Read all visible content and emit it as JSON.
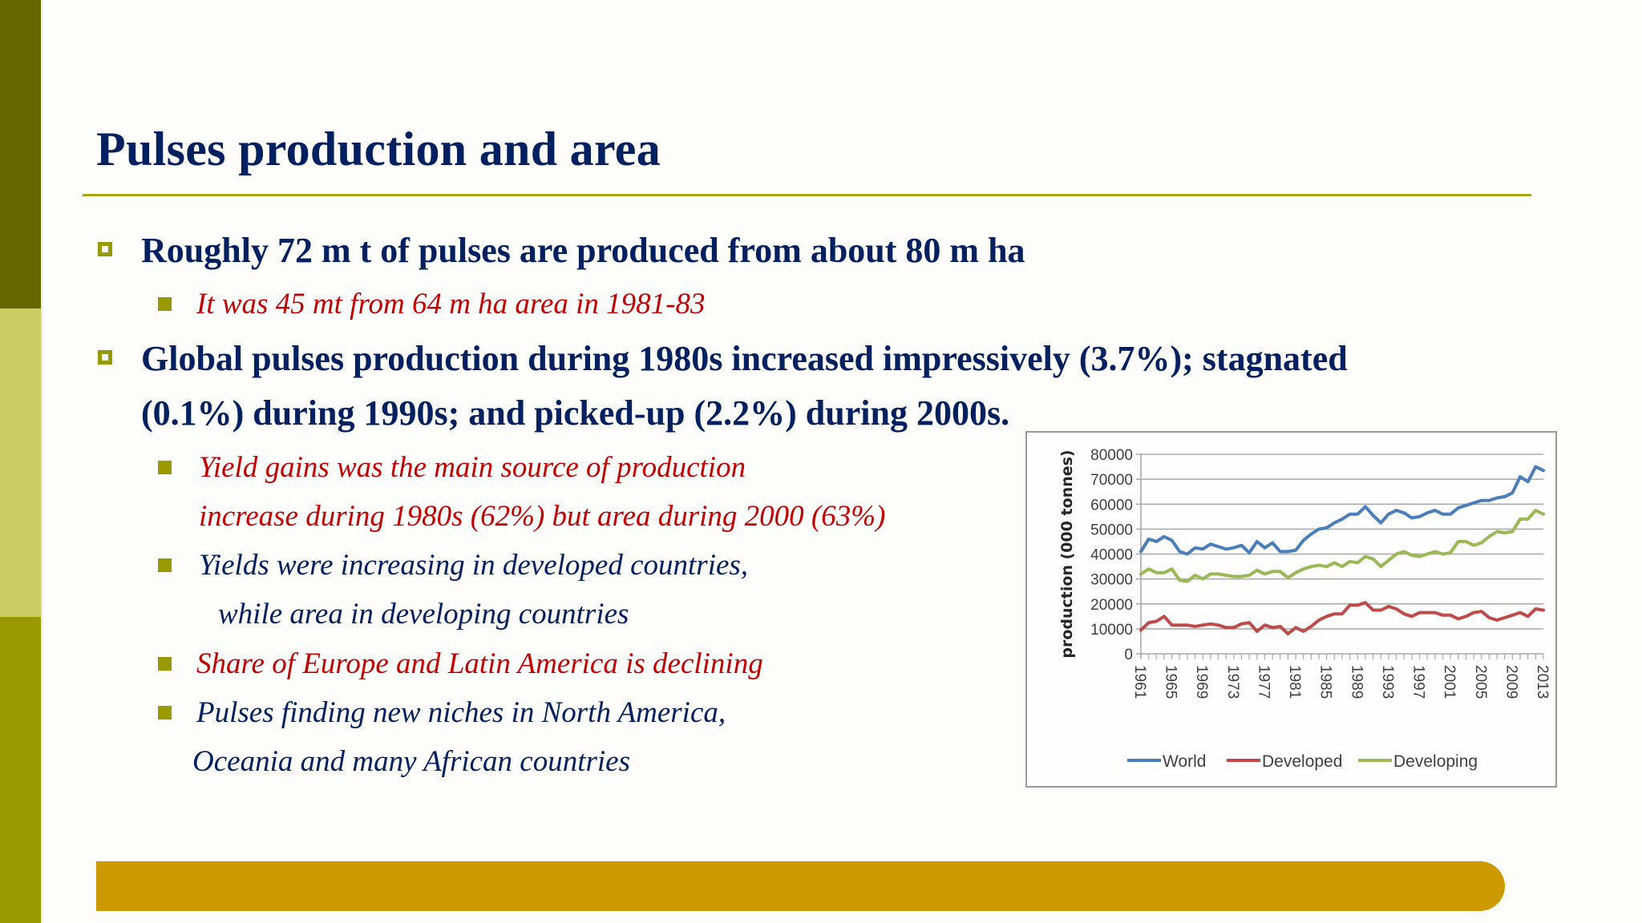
{
  "slide": {
    "title": "Pulses production and area",
    "colors": {
      "title": "#002060",
      "body_navy": "#002060",
      "body_red": "#c00000",
      "bullet": "#999900",
      "rule": "#a6a614",
      "bottom_bar": "#cc9900",
      "side_top": "#666600",
      "side_mid": "#cccc66",
      "side_bottom": "#999900"
    },
    "bullets": [
      {
        "text": "Roughly 72 m t of pulses are produced from about 80 m ha",
        "icon": "hollow-square-bullet",
        "sub": [
          {
            "lines": [
              "It was 45 mt from 64 m ha area in 1981-83"
            ],
            "color": "red",
            "icon": "filled-square-bullet"
          }
        ]
      },
      {
        "lines": [
          "Global pulses production during 1980s increased impressively (3.7%); stagnated",
          "(0.1%) during 1990s; and picked-up (2.2%) during 2000s."
        ],
        "icon": "hollow-square-bullet",
        "sub": [
          {
            "lines": [
              "Yield gains was the main source of production",
              "increase during 1980s  (62%) but area during 2000 (63%)"
            ],
            "color": "red",
            "icon": "filled-square-bullet"
          },
          {
            "lines": [
              "Yields were increasing in developed countries,",
              "while area in developing countries"
            ],
            "color": "navy",
            "icon": "filled-square-bullet"
          },
          {
            "lines": [
              "Share of Europe and Latin America is declining"
            ],
            "color": "red",
            "icon": "filled-square-bullet"
          },
          {
            "lines": [
              "Pulses finding new niches in North America,",
              "Oceania and many African countries"
            ],
            "color": "navy",
            "icon": "filled-square-bullet"
          }
        ]
      }
    ]
  },
  "chart_data": {
    "type": "line",
    "title": "",
    "xlabel": "",
    "ylabel": "production (000 tonnes)",
    "ylim": [
      0,
      80000
    ],
    "yticks": [
      "0",
      "10000",
      "20000",
      "30000",
      "40000",
      "50000",
      "60000",
      "70000",
      "80000"
    ],
    "xtick_labels": [
      "1961",
      "1965",
      "1969",
      "1973",
      "1977",
      "1981",
      "1985",
      "1989",
      "1993",
      "1997",
      "2001",
      "2005",
      "2009",
      "2013"
    ],
    "x": [
      1961,
      1962,
      1963,
      1964,
      1965,
      1966,
      1967,
      1968,
      1969,
      1970,
      1971,
      1972,
      1973,
      1974,
      1975,
      1976,
      1977,
      1978,
      1979,
      1980,
      1981,
      1982,
      1983,
      1984,
      1985,
      1986,
      1987,
      1988,
      1989,
      1990,
      1991,
      1992,
      1993,
      1994,
      1995,
      1996,
      1997,
      1998,
      1999,
      2000,
      2001,
      2002,
      2003,
      2004,
      2005,
      2006,
      2007,
      2008,
      2009,
      2010,
      2011,
      2012,
      2013
    ],
    "grid": true,
    "legend_position": "bottom",
    "series": [
      {
        "name": "World",
        "color": "#4a7ebb",
        "values": [
          41000,
          46000,
          45000,
          47000,
          45500,
          41000,
          40000,
          42500,
          42000,
          44000,
          43000,
          42000,
          42500,
          43500,
          40500,
          45000,
          42500,
          44500,
          41000,
          41000,
          41500,
          45500,
          48000,
          50000,
          50500,
          52500,
          54000,
          56000,
          56000,
          59000,
          55500,
          52500,
          56000,
          57500,
          56500,
          54500,
          55000,
          56500,
          57500,
          56000,
          56000,
          58500,
          59500,
          60500,
          61500,
          61500,
          62500,
          63000,
          64500,
          71000,
          69000,
          75000,
          73500
        ]
      },
      {
        "name": "Developed",
        "color": "#be4b48",
        "values": [
          9500,
          12500,
          13000,
          15000,
          11500,
          11500,
          11500,
          11000,
          11500,
          12000,
          11500,
          10500,
          10500,
          12000,
          12500,
          9000,
          11500,
          10500,
          11000,
          8000,
          10500,
          9000,
          11000,
          13500,
          15000,
          16000,
          16000,
          19500,
          19500,
          20500,
          17500,
          17500,
          19000,
          18000,
          16000,
          15000,
          16500,
          16500,
          16500,
          15500,
          15500,
          14000,
          15000,
          16500,
          17000,
          14500,
          13500,
          14500,
          15500,
          16500,
          15000,
          18000,
          17500
        ]
      },
      {
        "name": "Developing",
        "color": "#98b954",
        "values": [
          32000,
          34000,
          32500,
          32500,
          34000,
          29500,
          29000,
          31500,
          30000,
          32000,
          32000,
          31500,
          31000,
          31000,
          31500,
          33500,
          32000,
          33000,
          33000,
          30500,
          32500,
          34000,
          35000,
          35500,
          35000,
          36500,
          35000,
          37000,
          36500,
          39000,
          38000,
          35000,
          37500,
          40000,
          41000,
          39500,
          39000,
          40000,
          41000,
          40000,
          40500,
          45000,
          45000,
          43500,
          44500,
          47000,
          49000,
          48500,
          49000,
          54000,
          54000,
          57500,
          56000
        ]
      }
    ]
  }
}
